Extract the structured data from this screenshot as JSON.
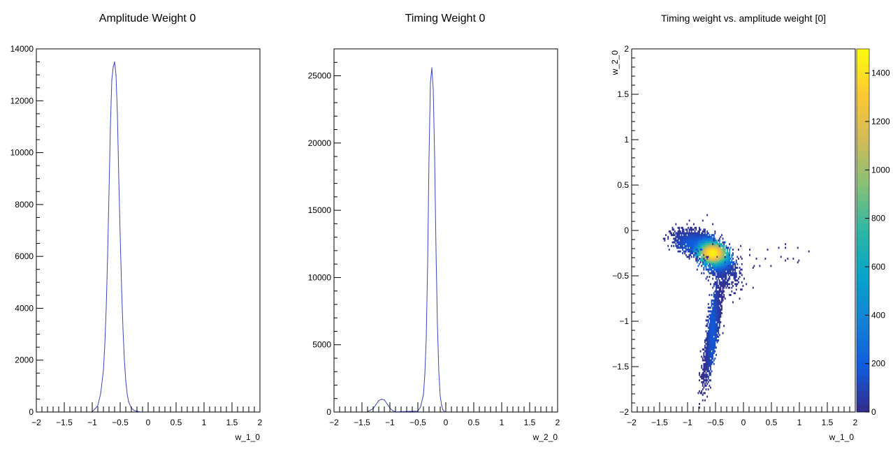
{
  "chart_data": [
    {
      "type": "bar",
      "title": "Amplitude Weight 0",
      "xlabel": "w_1_0",
      "ylabel": "",
      "xlim": [
        -2,
        2
      ],
      "ylim": [
        0,
        14000
      ],
      "x_ticks": [
        "−2",
        "−1.5",
        "−1",
        "−0.5",
        "0",
        "0.5",
        "1",
        "1.5",
        "2"
      ],
      "y_ticks": [
        "0",
        "2000",
        "4000",
        "6000",
        "8000",
        "10000",
        "12000",
        "14000"
      ],
      "series": [
        {
          "color": "#3b44c0",
          "x": [
            -1.0,
            -0.95,
            -0.9,
            -0.85,
            -0.8,
            -0.775,
            -0.75,
            -0.725,
            -0.7,
            -0.675,
            -0.65,
            -0.625,
            -0.6,
            -0.575,
            -0.55,
            -0.525,
            -0.5,
            -0.475,
            -0.45,
            -0.425,
            -0.4,
            -0.375,
            -0.35,
            -0.3,
            -0.25,
            -0.2,
            -0.15
          ],
          "y": [
            20,
            120,
            250,
            700,
            1600,
            2600,
            4000,
            6000,
            8500,
            11000,
            12800,
            13300,
            13500,
            13000,
            11500,
            9000,
            6800,
            4800,
            3200,
            2000,
            1200,
            700,
            400,
            150,
            60,
            30,
            10
          ]
        }
      ]
    },
    {
      "type": "bar",
      "title": "Timing Weight 0",
      "xlabel": "w_2_0",
      "ylabel": "",
      "xlim": [
        -2,
        2
      ],
      "ylim": [
        0,
        27000
      ],
      "x_ticks": [
        "−2",
        "−1.5",
        "−1",
        "−0.5",
        "0",
        "0.5",
        "1",
        "1.5",
        "2"
      ],
      "y_ticks": [
        "0",
        "5000",
        "10000",
        "15000",
        "20000",
        "25000"
      ],
      "series": [
        {
          "color": "#3b44c0",
          "x": [
            -1.4,
            -1.3,
            -1.25,
            -1.2,
            -1.15,
            -1.1,
            -1.05,
            -1.0,
            -0.95,
            -0.9,
            -0.5,
            -0.45,
            -0.4,
            -0.375,
            -0.35,
            -0.325,
            -0.3,
            -0.275,
            -0.25,
            -0.225,
            -0.2,
            -0.175,
            -0.15,
            -0.125,
            -0.1,
            -0.075,
            -0.05,
            -0.025
          ],
          "y": [
            30,
            250,
            550,
            850,
            950,
            900,
            600,
            300,
            100,
            20,
            60,
            400,
            1300,
            2800,
            5500,
            11000,
            19000,
            24500,
            25600,
            24000,
            19000,
            12000,
            6500,
            3000,
            1200,
            500,
            150,
            40
          ]
        }
      ]
    },
    {
      "type": "heatmap",
      "title": "Timing weight vs. amplitude weight [0]",
      "xlabel": "w_1_0",
      "ylabel": "w_2_0",
      "xlim": [
        -2,
        2
      ],
      "ylim": [
        -2,
        2
      ],
      "x_ticks": [
        "−2",
        "−1.5",
        "−1",
        "−0.5",
        "0",
        "0.5",
        "1",
        "1.5",
        "2"
      ],
      "y_ticks": [
        "−2",
        "−1.5",
        "−1",
        "−0.5",
        "0",
        "0.5",
        "1",
        "1.5",
        "2"
      ],
      "colorbar_ticks": [
        "0",
        "200",
        "400",
        "600",
        "800",
        "1000",
        "1200",
        "1400"
      ],
      "zlim": [
        0,
        1500
      ],
      "colormap": [
        "#352a87",
        "#0f5cdd",
        "#1481d6",
        "#06a4ca",
        "#2eb7a4",
        "#87bf77",
        "#d1bb59",
        "#fec832",
        "#f9fb0e"
      ],
      "clusters": [
        {
          "x": -0.55,
          "y": -0.25,
          "sx": 0.16,
          "sy": 0.07,
          "peak": 1450,
          "count": 2600,
          "rot": -0.45
        },
        {
          "x": -0.85,
          "y": -0.15,
          "sx": 0.2,
          "sy": 0.06,
          "peak": 180,
          "count": 1300,
          "rot": -0.2
        },
        {
          "x": -0.55,
          "y": -1.1,
          "sx": 0.05,
          "sy": 0.3,
          "peak": 160,
          "count": 1400,
          "rot": -0.25
        },
        {
          "x": -0.45,
          "y": -0.35,
          "sx": 0.2,
          "sy": 0.1,
          "peak": 120,
          "count": 700,
          "rot": -0.6
        }
      ]
    }
  ]
}
